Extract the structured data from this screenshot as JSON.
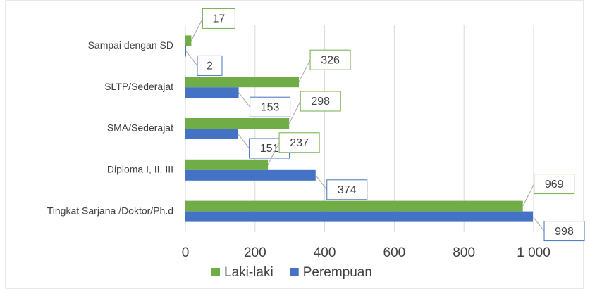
{
  "chart_data": {
    "type": "hbar",
    "categories": [
      "Sampai dengan SD",
      "SLTP/Sederajat",
      "SMA/Sederajat",
      "Diploma I, II, III",
      "Tingkat Sarjana /Doktor/Ph.d"
    ],
    "series": [
      {
        "name": "Laki-laki",
        "color": "#70ad47",
        "values": [
          17,
          326,
          298,
          237,
          969
        ]
      },
      {
        "name": "Perempuan",
        "color": "#4472c4",
        "values": [
          2,
          153,
          151,
          374,
          998
        ]
      }
    ],
    "xlim": [
      0,
      1000
    ],
    "xticks": [
      0,
      200,
      400,
      600,
      800,
      {
        "value": 1000,
        "label": "1 000"
      }
    ],
    "grid": true,
    "legend": "bottom"
  }
}
